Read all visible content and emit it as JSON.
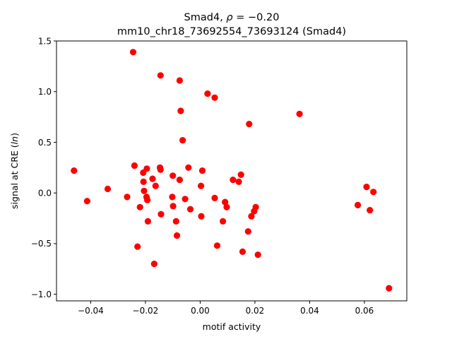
{
  "chart_data": {
    "type": "scatter",
    "title_line1_prefix": "Smad4, ",
    "title_rho": "ρ",
    "title_line1_suffix": " = −0.20",
    "title_line2": "mm10_chr18_73692554_73693124 (Smad4)",
    "xlabel": "motif activity",
    "ylabel_prefix": "signal at CRE (",
    "ylabel_italic": "ln",
    "ylabel_suffix": ")",
    "xlim": [
      -0.0525,
      0.0755
    ],
    "ylim": [
      -1.065,
      1.5
    ],
    "xticks": [
      {
        "value": -0.04,
        "label": "−0.04"
      },
      {
        "value": -0.02,
        "label": "−0.02"
      },
      {
        "value": 0.0,
        "label": "0.00"
      },
      {
        "value": 0.02,
        "label": "0.02"
      },
      {
        "value": 0.04,
        "label": "0.04"
      },
      {
        "value": 0.06,
        "label": "0.06"
      }
    ],
    "yticks": [
      {
        "value": -1.0,
        "label": "−1.0"
      },
      {
        "value": -0.5,
        "label": "−0.5"
      },
      {
        "value": 0.0,
        "label": "0.0"
      },
      {
        "value": 0.5,
        "label": "0.5"
      },
      {
        "value": 1.0,
        "label": "1.0"
      },
      {
        "value": 1.5,
        "label": "1.5"
      }
    ],
    "grid": false,
    "marker_color": "#ff0000",
    "points": [
      {
        "x": -0.0245,
        "y": 1.39
      },
      {
        "x": -0.0145,
        "y": 1.16
      },
      {
        "x": -0.0075,
        "y": 1.11
      },
      {
        "x": 0.0027,
        "y": 0.98
      },
      {
        "x": 0.0053,
        "y": 0.94
      },
      {
        "x": -0.0071,
        "y": 0.81
      },
      {
        "x": 0.0363,
        "y": 0.78
      },
      {
        "x": 0.0179,
        "y": 0.68
      },
      {
        "x": -0.0064,
        "y": 0.52
      },
      {
        "x": -0.0461,
        "y": 0.22
      },
      {
        "x": -0.024,
        "y": 0.27
      },
      {
        "x": -0.0195,
        "y": 0.24
      },
      {
        "x": -0.0208,
        "y": 0.2
      },
      {
        "x": -0.0147,
        "y": 0.25
      },
      {
        "x": -0.0145,
        "y": 0.23
      },
      {
        "x": -0.0043,
        "y": 0.25
      },
      {
        "x": 0.0008,
        "y": 0.22
      },
      {
        "x": -0.01,
        "y": 0.17
      },
      {
        "x": -0.0174,
        "y": 0.14
      },
      {
        "x": -0.0207,
        "y": 0.11
      },
      {
        "x": -0.0075,
        "y": 0.13
      },
      {
        "x": 0.0149,
        "y": 0.18
      },
      {
        "x": 0.012,
        "y": 0.13
      },
      {
        "x": 0.0141,
        "y": 0.11
      },
      {
        "x": -0.0163,
        "y": 0.07
      },
      {
        "x": 0.0003,
        "y": 0.07
      },
      {
        "x": -0.0338,
        "y": 0.04
      },
      {
        "x": -0.0205,
        "y": 0.02
      },
      {
        "x": -0.0267,
        "y": -0.04
      },
      {
        "x": -0.0196,
        "y": -0.04
      },
      {
        "x": -0.0102,
        "y": -0.04
      },
      {
        "x": -0.0413,
        "y": -0.08
      },
      {
        "x": -0.0193,
        "y": -0.07
      },
      {
        "x": -0.0055,
        "y": -0.06
      },
      {
        "x": 0.0053,
        "y": -0.05
      },
      {
        "x": 0.0091,
        "y": -0.09
      },
      {
        "x": -0.022,
        "y": -0.14
      },
      {
        "x": -0.0099,
        "y": -0.13
      },
      {
        "x": 0.0097,
        "y": -0.14
      },
      {
        "x": -0.0036,
        "y": -0.16
      },
      {
        "x": 0.0203,
        "y": -0.14
      },
      {
        "x": 0.0197,
        "y": -0.18
      },
      {
        "x": -0.0143,
        "y": -0.21
      },
      {
        "x": 0.0004,
        "y": -0.23
      },
      {
        "x": 0.0187,
        "y": -0.23
      },
      {
        "x": -0.0191,
        "y": -0.28
      },
      {
        "x": -0.0088,
        "y": -0.28
      },
      {
        "x": 0.0083,
        "y": -0.28
      },
      {
        "x": 0.0175,
        "y": -0.38
      },
      {
        "x": -0.0085,
        "y": -0.42
      },
      {
        "x": -0.0229,
        "y": -0.53
      },
      {
        "x": 0.0062,
        "y": -0.52
      },
      {
        "x": 0.0155,
        "y": -0.58
      },
      {
        "x": 0.0211,
        "y": -0.61
      },
      {
        "x": -0.0168,
        "y": -0.7
      },
      {
        "x": 0.0576,
        "y": -0.12
      },
      {
        "x": 0.0608,
        "y": 0.06
      },
      {
        "x": 0.0633,
        "y": 0.01
      },
      {
        "x": 0.062,
        "y": -0.17
      },
      {
        "x": 0.069,
        "y": -0.94
      }
    ]
  }
}
